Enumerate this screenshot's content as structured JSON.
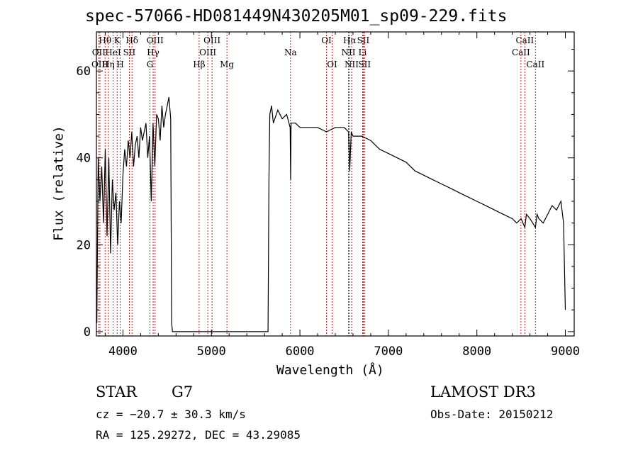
{
  "chart_data": {
    "type": "line",
    "title": "spec-57066-HD081449N430205M01_sp09-229.fits",
    "xlabel": "Wavelength (Å)",
    "ylabel": "Flux (relative)",
    "xlim": [
      3700,
      9100
    ],
    "ylim": [
      -1,
      69
    ],
    "xticks": [
      4000,
      5000,
      6000,
      7000,
      8000,
      9000
    ],
    "yticks": [
      0,
      20,
      40,
      60
    ],
    "series": [
      {
        "name": "flux",
        "x": [
          3700,
          3705,
          3720,
          3740,
          3760,
          3780,
          3800,
          3820,
          3840,
          3860,
          3880,
          3900,
          3920,
          3940,
          3960,
          3980,
          4000,
          4020,
          4040,
          4060,
          4080,
          4100,
          4120,
          4140,
          4160,
          4180,
          4200,
          4220,
          4240,
          4260,
          4280,
          4300,
          4320,
          4340,
          4360,
          4380,
          4400,
          4420,
          4440,
          4460,
          4480,
          4500,
          4520,
          4540,
          4550,
          4560,
          5600,
          5640,
          5650,
          5660,
          5680,
          5700,
          5750,
          5800,
          5850,
          5890,
          5895,
          5900,
          5950,
          6000,
          6100,
          6200,
          6300,
          6400,
          6500,
          6550,
          6563,
          6580,
          6600,
          6700,
          6800,
          6900,
          7000,
          7100,
          7200,
          7300,
          7400,
          7500,
          7600,
          7700,
          7800,
          7900,
          8000,
          8100,
          8200,
          8300,
          8400,
          8450,
          8500,
          8542,
          8560,
          8600,
          8662,
          8680,
          8700,
          8750,
          8800,
          8850,
          8900,
          8950,
          8980,
          9000
        ],
        "y": [
          10,
          2,
          40,
          30,
          38,
          25,
          42,
          22,
          40,
          18,
          35,
          28,
          32,
          20,
          30,
          25,
          36,
          42,
          38,
          44,
          40,
          46,
          38,
          43,
          45,
          40,
          47,
          44,
          46,
          48,
          40,
          45,
          30,
          48,
          38,
          50,
          49,
          44,
          52,
          47,
          50,
          52,
          54,
          49,
          2,
          0,
          0,
          0,
          35,
          50,
          52,
          48,
          51,
          49,
          50,
          47,
          35,
          48,
          48,
          47,
          47,
          47,
          46,
          47,
          47,
          46,
          37,
          46,
          45,
          45,
          44,
          42,
          41,
          40,
          39,
          37,
          36,
          35,
          34,
          33,
          32,
          31,
          30,
          29,
          28,
          27,
          26,
          25,
          26,
          24,
          27,
          26,
          24,
          27,
          26,
          25,
          27,
          29,
          28,
          30,
          25,
          5
        ]
      }
    ],
    "line_markers": [
      {
        "label": "Hθ",
        "x": 3798,
        "row": 0
      },
      {
        "label": "OII",
        "x": 3727,
        "row": 1
      },
      {
        "label": "OIII",
        "x": 3740,
        "row": 2
      },
      {
        "label": "K",
        "x": 3934,
        "row": 0
      },
      {
        "label": "HeI",
        "x": 3889,
        "row": 1
      },
      {
        "label": "Hη",
        "x": 3835,
        "row": 2
      },
      {
        "label": "H",
        "x": 3969,
        "row": 2
      },
      {
        "label": "Hδ",
        "x": 4102,
        "row": 0
      },
      {
        "label": "SII",
        "x": 4072,
        "row": 1
      },
      {
        "label": "OIII",
        "x": 4363,
        "row": 0
      },
      {
        "label": "Hγ",
        "x": 4341,
        "row": 1
      },
      {
        "label": "G",
        "x": 4305,
        "row": 2
      },
      {
        "label": "OIII",
        "x": 5007,
        "row": 0
      },
      {
        "label": "OIII",
        "x": 4959,
        "row": 1
      },
      {
        "label": "Hβ",
        "x": 4861,
        "row": 2
      },
      {
        "label": "Mg",
        "x": 5175,
        "row": 2
      },
      {
        "label": "Na",
        "x": 5894,
        "row": 1
      },
      {
        "label": "OI",
        "x": 6300,
        "row": 0
      },
      {
        "label": "OI",
        "x": 6364,
        "row": 2
      },
      {
        "label": "Hα",
        "x": 6563,
        "row": 0
      },
      {
        "label": "SII",
        "x": 6716,
        "row": 0
      },
      {
        "label": "NII",
        "x": 6548,
        "row": 1
      },
      {
        "label": "Li",
        "x": 6708,
        "row": 1
      },
      {
        "label": "NII",
        "x": 6584,
        "row": 2
      },
      {
        "label": "SII",
        "x": 6731,
        "row": 2
      },
      {
        "label": "CaII",
        "x": 8542,
        "row": 0
      },
      {
        "label": "CaII",
        "x": 8498,
        "row": 1
      },
      {
        "label": "CaII",
        "x": 8662,
        "row": 2
      }
    ]
  },
  "info": {
    "class": "STAR",
    "subclass": "G7",
    "survey": "LAMOST DR3",
    "cz": "cz = −20.7 ± 30.3 km/s",
    "obs_date": "Obs-Date: 20150212",
    "radec": "RA = 125.29272, DEC =  43.29085"
  },
  "colors": {
    "axes": "#000000",
    "spectrum": "#000000",
    "marker": "#cc0000"
  }
}
